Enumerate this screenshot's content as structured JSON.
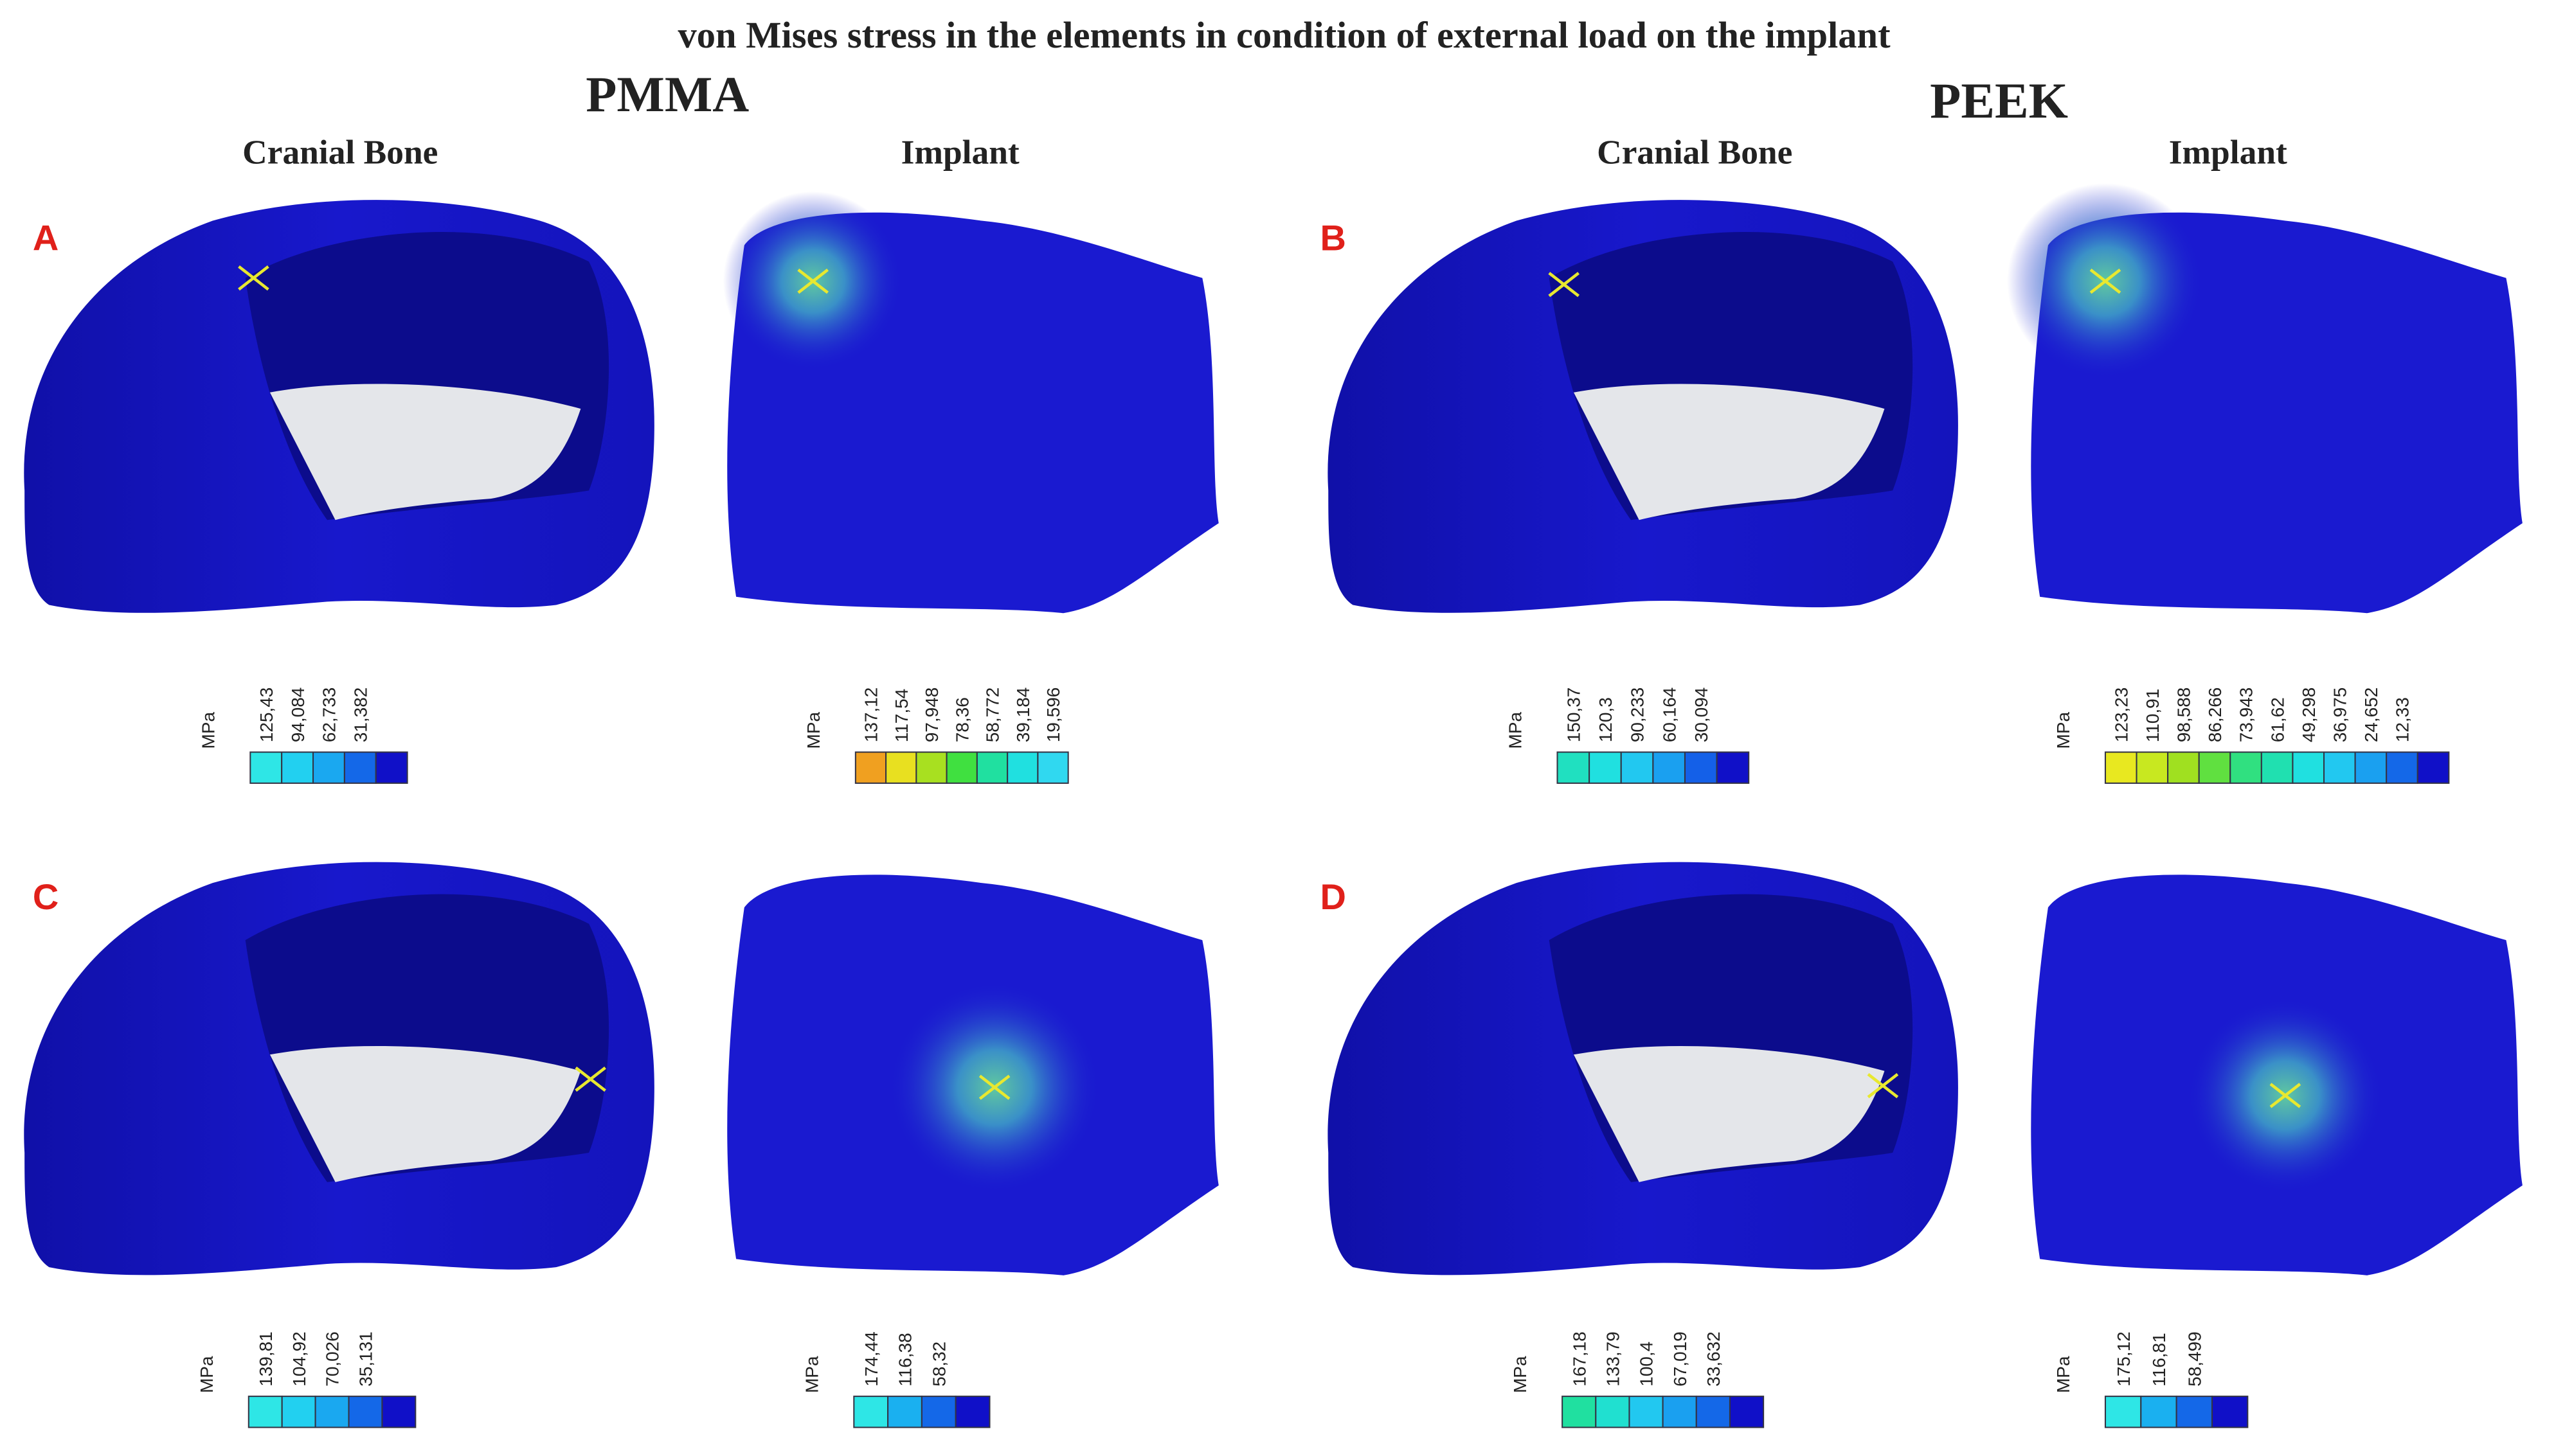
{
  "title": "von Mises stress in the elements in condition of external load on the implant",
  "groups": [
    {
      "material": "PMMA",
      "headers": [
        "Cranial Bone",
        "Implant"
      ]
    },
    {
      "material": "PEEK",
      "headers": [
        "Cranial Bone",
        "Implant"
      ]
    }
  ],
  "panels": [
    {
      "letter": "A",
      "legends": [
        {
          "unit": "MPa",
          "labels": [
            "125,43",
            "94,084",
            "62,733",
            "31,382"
          ],
          "colors": [
            "#2ee6e6",
            "#22d0f0",
            "#1aa8f0",
            "#1468e8",
            "#1010c8"
          ]
        },
        {
          "unit": "MPa",
          "labels": [
            "137,12",
            "117,54",
            "97,948",
            "78,36",
            "58,772",
            "39,184",
            "19,596"
          ],
          "colors": [
            "#f0a020",
            "#e8e020",
            "#a8e020",
            "#40e040",
            "#20e0a0",
            "#20e0e0",
            "#30d8f0"
          ]
        }
      ]
    },
    {
      "letter": "B",
      "legends": [
        {
          "unit": "MPa",
          "labels": [
            "150,37",
            "120,3",
            "90,233",
            "60,164",
            "30,094"
          ],
          "colors": [
            "#20e0c0",
            "#20e0e0",
            "#22c8f0",
            "#1aa0f0",
            "#1460e8",
            "#1010c8"
          ]
        },
        {
          "unit": "MPa",
          "labels": [
            "123,23",
            "110,91",
            "98,588",
            "86,266",
            "73,943",
            "61,62",
            "49,298",
            "36,975",
            "24,652",
            "12,33"
          ],
          "colors": [
            "#e8e820",
            "#c8e820",
            "#a0e020",
            "#60e040",
            "#30e080",
            "#20e0b0",
            "#20e0e0",
            "#22c8f0",
            "#1aa0f0",
            "#1468e8",
            "#1010c8"
          ]
        }
      ]
    },
    {
      "letter": "C",
      "legends": [
        {
          "unit": "MPa",
          "labels": [
            "139,81",
            "104,92",
            "70,026",
            "35,131"
          ],
          "colors": [
            "#2ee6e6",
            "#22d0f0",
            "#1aa8f0",
            "#1468e8",
            "#1010c8"
          ]
        },
        {
          "unit": "MPa",
          "labels": [
            "174,44",
            "116,38",
            "58,32"
          ],
          "colors": [
            "#2ee6e6",
            "#1ab0f0",
            "#1468e8",
            "#1010c8"
          ]
        }
      ]
    },
    {
      "letter": "D",
      "legends": [
        {
          "unit": "MPa",
          "labels": [
            "167,18",
            "133,79",
            "100,4",
            "67,019",
            "33,632"
          ],
          "colors": [
            "#20e0a0",
            "#20e0d0",
            "#22c8f0",
            "#1aa0f0",
            "#1468e8",
            "#1010c8"
          ]
        },
        {
          "unit": "MPa",
          "labels": [
            "175,12",
            "116,81",
            "58,499"
          ],
          "colors": [
            "#2ee6e6",
            "#1ab0f0",
            "#1468e8",
            "#1010c8"
          ]
        }
      ]
    }
  ]
}
